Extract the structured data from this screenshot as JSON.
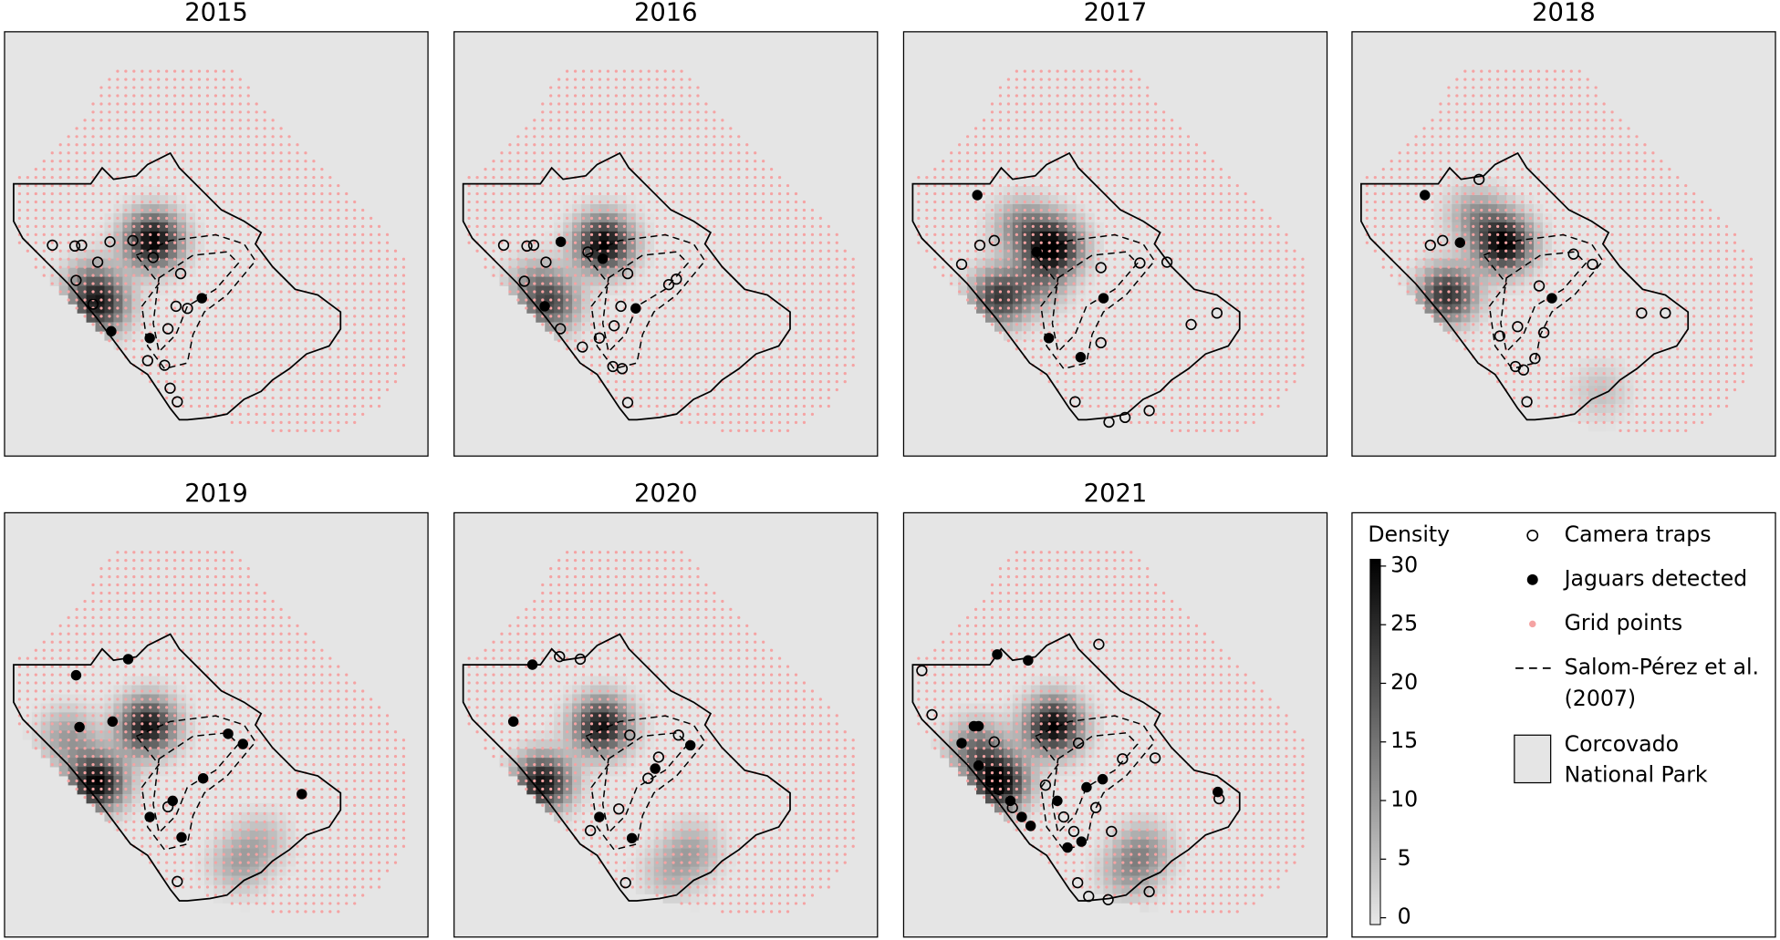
{
  "chart_data": {
    "type": "map",
    "panels": [
      {
        "title": "2015",
        "density": [
          {
            "x": 35.1,
            "y": 49.2,
            "value": 30
          },
          {
            "x": 22.5,
            "y": 64.7,
            "value": 22
          },
          {
            "x": 20.4,
            "y": 59.4,
            "value": 10
          }
        ],
        "camera_traps": [
          [
            11.3,
            50.3
          ],
          [
            16.6,
            50.5
          ],
          [
            18.2,
            50.3
          ],
          [
            22,
            54.3
          ],
          [
            24.9,
            49.5
          ],
          [
            30.3,
            49.2
          ],
          [
            35.1,
            53.2
          ],
          [
            16.9,
            58.6
          ],
          [
            20.9,
            64.2
          ],
          [
            33.8,
            77.5
          ],
          [
            37.8,
            78.6
          ],
          [
            39.1,
            84
          ],
          [
            40.8,
            87.2
          ],
          [
            40.5,
            64.7
          ],
          [
            43.2,
            65.2
          ],
          [
            41.6,
            57
          ],
          [
            38.6,
            70
          ]
        ],
        "jaguars": [
          [
            46.6,
            62.8
          ],
          [
            34.3,
            72.2
          ],
          [
            25.2,
            70.6
          ]
        ]
      },
      {
        "title": "2016",
        "density": [
          {
            "x": 35.4,
            "y": 50,
            "value": 30
          },
          {
            "x": 22.8,
            "y": 64.2,
            "value": 18
          },
          {
            "x": 18.8,
            "y": 59.4,
            "value": 8
          }
        ],
        "camera_traps": [
          [
            11.7,
            50.3
          ],
          [
            17.2,
            50.5
          ],
          [
            18.8,
            50.3
          ],
          [
            21.7,
            54.3
          ],
          [
            31.6,
            51.9
          ],
          [
            41,
            57
          ],
          [
            39.4,
            64.7
          ],
          [
            37.8,
            69.3
          ],
          [
            34.3,
            72.2
          ],
          [
            30.3,
            74.3
          ],
          [
            37.5,
            78.9
          ],
          [
            39.7,
            79.4
          ],
          [
            41,
            87.4
          ],
          [
            16.6,
            58.8
          ],
          [
            25.1,
            70
          ],
          [
            52.5,
            58.3
          ],
          [
            50.7,
            59.6
          ]
        ],
        "jaguars": [
          [
            25.2,
            49.5
          ],
          [
            42.9,
            65.2
          ],
          [
            35.1,
            53.5
          ],
          [
            21.4,
            64.7
          ]
        ]
      },
      {
        "title": "2017",
        "density": [
          {
            "x": 35.4,
            "y": 50.8,
            "value": 30
          },
          {
            "x": 22.5,
            "y": 62.6,
            "value": 22
          },
          {
            "x": 27.9,
            "y": 46,
            "value": 12
          },
          {
            "x": 31.9,
            "y": 59.4,
            "value": 10
          }
        ],
        "camera_traps": [
          [
            18,
            50.3
          ],
          [
            21.4,
            49.2
          ],
          [
            13.7,
            54.8
          ],
          [
            46.6,
            55.6
          ],
          [
            55.8,
            54.5
          ],
          [
            46.6,
            73.3
          ],
          [
            40.5,
            87.2
          ],
          [
            48.5,
            92
          ],
          [
            52.3,
            90.9
          ],
          [
            58,
            89.3
          ],
          [
            67.9,
            69
          ],
          [
            74,
            66.3
          ],
          [
            62.2,
            54.3
          ]
        ],
        "jaguars": [
          [
            17.4,
            38.5
          ],
          [
            31.4,
            51.9
          ],
          [
            47.2,
            62.8
          ],
          [
            34.3,
            72.2
          ],
          [
            41.8,
            76.7
          ]
        ]
      },
      {
        "title": "2018",
        "density": [
          {
            "x": 35.9,
            "y": 50,
            "value": 30
          },
          {
            "x": 22.5,
            "y": 62,
            "value": 24
          },
          {
            "x": 29.2,
            "y": 43.3,
            "value": 10
          },
          {
            "x": 58.7,
            "y": 84.8,
            "value": 5
          }
        ],
        "camera_traps": [
          [
            18.5,
            50.3
          ],
          [
            21.4,
            49.2
          ],
          [
            30,
            34.8
          ],
          [
            44.2,
            59.9
          ],
          [
            52.3,
            52.4
          ],
          [
            56.8,
            54.8
          ],
          [
            39.1,
            69.5
          ],
          [
            34.9,
            71.7
          ],
          [
            38.6,
            78.9
          ],
          [
            43.2,
            77
          ],
          [
            41.3,
            87.2
          ],
          [
            45.3,
            70.9
          ],
          [
            68.4,
            66.3
          ],
          [
            74,
            66.3
          ],
          [
            40.5,
            79.7
          ]
        ],
        "jaguars": [
          [
            17.2,
            38.5
          ],
          [
            25.5,
            49.7
          ],
          [
            47.2,
            62.8
          ]
        ]
      },
      {
        "title": "2019",
        "density": [
          {
            "x": 33.8,
            "y": 50.3,
            "value": 28
          },
          {
            "x": 21.7,
            "y": 63.6,
            "value": 30
          },
          {
            "x": 15,
            "y": 52.9,
            "value": 10
          },
          {
            "x": 55.2,
            "y": 82.9,
            "value": 8
          },
          {
            "x": 60.6,
            "y": 77.5,
            "value": 6
          }
        ],
        "camera_traps": [
          [
            40.8,
            86.9
          ],
          [
            38.6,
            69.3
          ]
        ],
        "jaguars": [
          [
            16.9,
            38.3
          ],
          [
            29.2,
            34.5
          ],
          [
            17.7,
            50.5
          ],
          [
            25.5,
            49.2
          ],
          [
            52.8,
            52.1
          ],
          [
            56.3,
            54.5
          ],
          [
            46.9,
            62.6
          ],
          [
            39.7,
            67.9
          ],
          [
            34.3,
            71.7
          ],
          [
            41.8,
            76.5
          ],
          [
            70.2,
            66.3
          ]
        ]
      },
      {
        "title": "2020",
        "density": [
          {
            "x": 34.9,
            "y": 50.3,
            "value": 28
          },
          {
            "x": 20.9,
            "y": 63.6,
            "value": 28
          },
          {
            "x": 56.3,
            "y": 79.7,
            "value": 8
          },
          {
            "x": 50.9,
            "y": 85,
            "value": 6
          }
        ],
        "camera_traps": [
          [
            24.9,
            33.9
          ],
          [
            29.8,
            34.5
          ],
          [
            41.5,
            52.4
          ],
          [
            53,
            52.4
          ],
          [
            45.8,
            62.6
          ],
          [
            38.9,
            69.8
          ],
          [
            32.2,
            74.9
          ],
          [
            40.5,
            87.2
          ],
          [
            48.3,
            57.6
          ]
        ],
        "jaguars": [
          [
            18.5,
            35.8
          ],
          [
            14,
            49.2
          ],
          [
            55.8,
            54.8
          ],
          [
            47.5,
            60.3
          ],
          [
            34.3,
            71.7
          ],
          [
            42,
            76.7
          ]
        ]
      },
      {
        "title": "2021",
        "density": [
          {
            "x": 35.4,
            "y": 50.3,
            "value": 30
          },
          {
            "x": 22.5,
            "y": 63.6,
            "value": 30
          },
          {
            "x": 17.2,
            "y": 55.6,
            "value": 15
          },
          {
            "x": 56.8,
            "y": 79.7,
            "value": 10
          },
          {
            "x": 52.8,
            "y": 85,
            "value": 8
          }
        ],
        "camera_traps": [
          [
            4.3,
            37.2
          ],
          [
            6.7,
            47.6
          ],
          [
            46.1,
            31
          ],
          [
            21.4,
            54
          ],
          [
            20.6,
            63.4
          ],
          [
            22.5,
            65.2
          ],
          [
            25.7,
            69.5
          ],
          [
            33.5,
            64.2
          ],
          [
            41.3,
            54.3
          ],
          [
            51.7,
            58
          ],
          [
            59.4,
            57.8
          ],
          [
            37.8,
            71.7
          ],
          [
            40.2,
            75.1
          ],
          [
            49.1,
            75.1
          ],
          [
            41.1,
            87.2
          ],
          [
            43.7,
            90.4
          ],
          [
            48.3,
            91.2
          ],
          [
            58,
            89.3
          ],
          [
            74.5,
            67.4
          ],
          [
            45.4,
            69.5
          ]
        ],
        "jaguars": [
          [
            22.1,
            33.4
          ],
          [
            29.4,
            34.8
          ],
          [
            16.6,
            50.3
          ],
          [
            17.7,
            50.3
          ],
          [
            13.7,
            54.3
          ],
          [
            17.7,
            59.6
          ],
          [
            25.2,
            67.9
          ],
          [
            27.9,
            71.7
          ],
          [
            30,
            73.8
          ],
          [
            43.2,
            64.7
          ],
          [
            47,
            62.8
          ],
          [
            38.7,
            78.9
          ],
          [
            42,
            77.5
          ],
          [
            74.2,
            65.8
          ],
          [
            36.3,
            67.9
          ]
        ]
      }
    ],
    "colorbar": {
      "title": "Density",
      "lim": [
        0,
        30
      ],
      "ticks": [
        0,
        5,
        10,
        15,
        20,
        25,
        30
      ]
    },
    "legend": {
      "camera_traps": "Camera traps",
      "jaguars": "Jaguars detected",
      "grid_points": "Grid points",
      "survey": [
        "Salom-Pérez et al.",
        "(2007)"
      ],
      "park": [
        "Corcovado",
        "National Park"
      ]
    },
    "colors": {
      "grid_points": "#f5a3a3",
      "park": "#e5e5e5"
    }
  }
}
